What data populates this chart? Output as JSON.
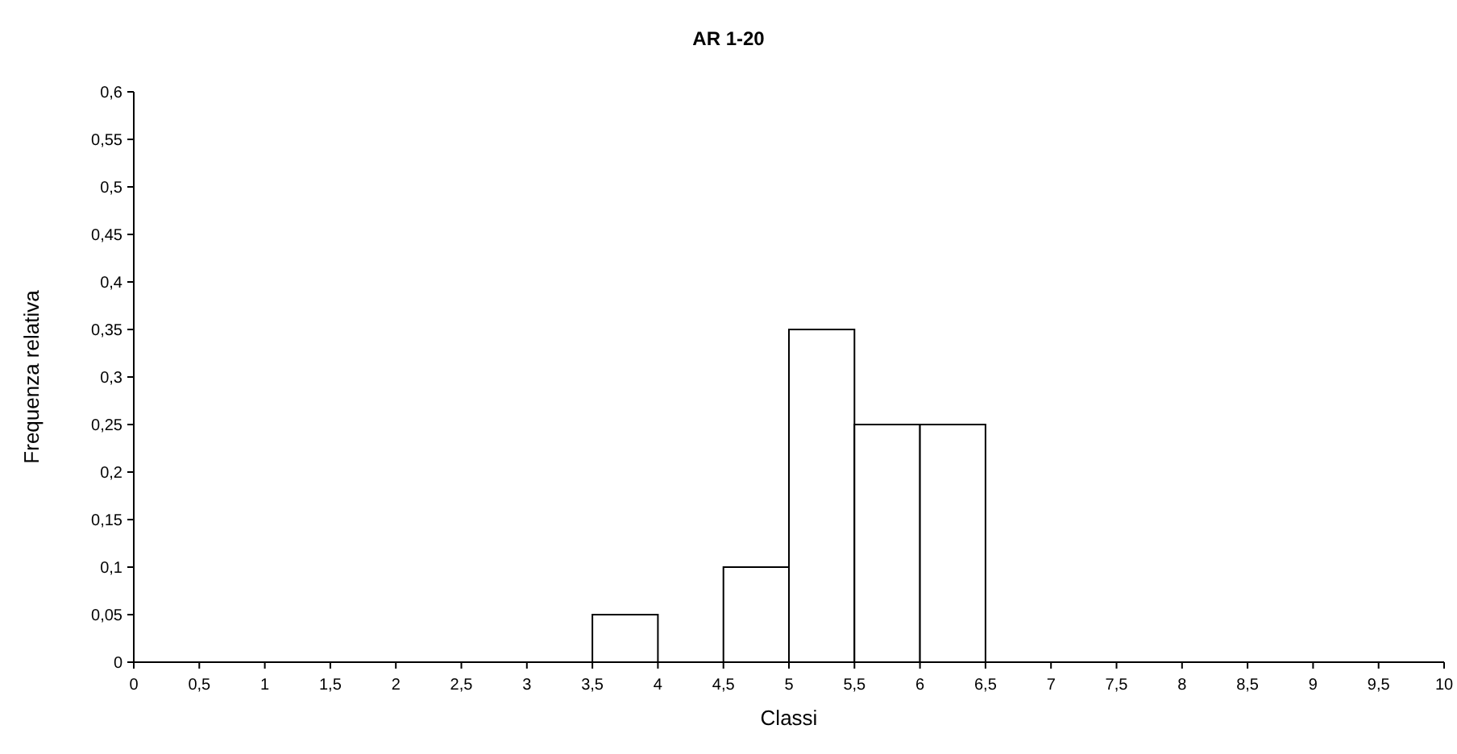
{
  "chart_data": {
    "type": "histogram",
    "title": "AR 1-20",
    "xlabel": "Classi",
    "ylabel": "Frequenza relativa",
    "bins": [
      0,
      0.5,
      1,
      1.5,
      2,
      2.5,
      3,
      3.5,
      4,
      4.5,
      5,
      5.5,
      6,
      6.5,
      7,
      7.5,
      8,
      8.5,
      9,
      9.5,
      10
    ],
    "values": [
      0,
      0,
      0,
      0,
      0,
      0,
      0,
      0.05,
      0,
      0.1,
      0.35,
      0.25,
      0.25,
      0,
      0,
      0,
      0,
      0,
      0,
      0
    ],
    "color": "#ffffff",
    "xlim": [
      0,
      10
    ],
    "xticks": [
      0,
      {
        "value": 0.5,
        "label": "0,5"
      },
      1,
      {
        "value": 1.5,
        "label": "1,5"
      },
      2,
      {
        "value": 2.5,
        "label": "2,5"
      },
      3,
      {
        "value": 3.5,
        "label": "3,5"
      },
      4,
      {
        "value": 4.5,
        "label": "4,5"
      },
      5,
      {
        "value": 5.5,
        "label": "5,5"
      },
      6,
      {
        "value": 6.5,
        "label": "6,5"
      },
      7,
      {
        "value": 7.5,
        "label": "7,5"
      },
      8,
      {
        "value": 8.5,
        "label": "8,5"
      },
      9,
      {
        "value": 9.5,
        "label": "9,5"
      },
      10
    ],
    "ylim": [
      0,
      0.6
    ],
    "yticks": [
      0,
      {
        "value": 0.05,
        "label": "0,05"
      },
      {
        "value": 0.1,
        "label": "0,1"
      },
      {
        "value": 0.15,
        "label": "0,15"
      },
      {
        "value": 0.2,
        "label": "0,2"
      },
      {
        "value": 0.25,
        "label": "0,25"
      },
      {
        "value": 0.3,
        "label": "0,3"
      },
      {
        "value": 0.35,
        "label": "0,35"
      },
      {
        "value": 0.4,
        "label": "0,4"
      },
      {
        "value": 0.45,
        "label": "0,45"
      },
      {
        "value": 0.5,
        "label": "0,5"
      },
      {
        "value": 0.55,
        "label": "0,55"
      },
      {
        "value": 0.6,
        "label": "0,6"
      }
    ],
    "grid": false
  }
}
